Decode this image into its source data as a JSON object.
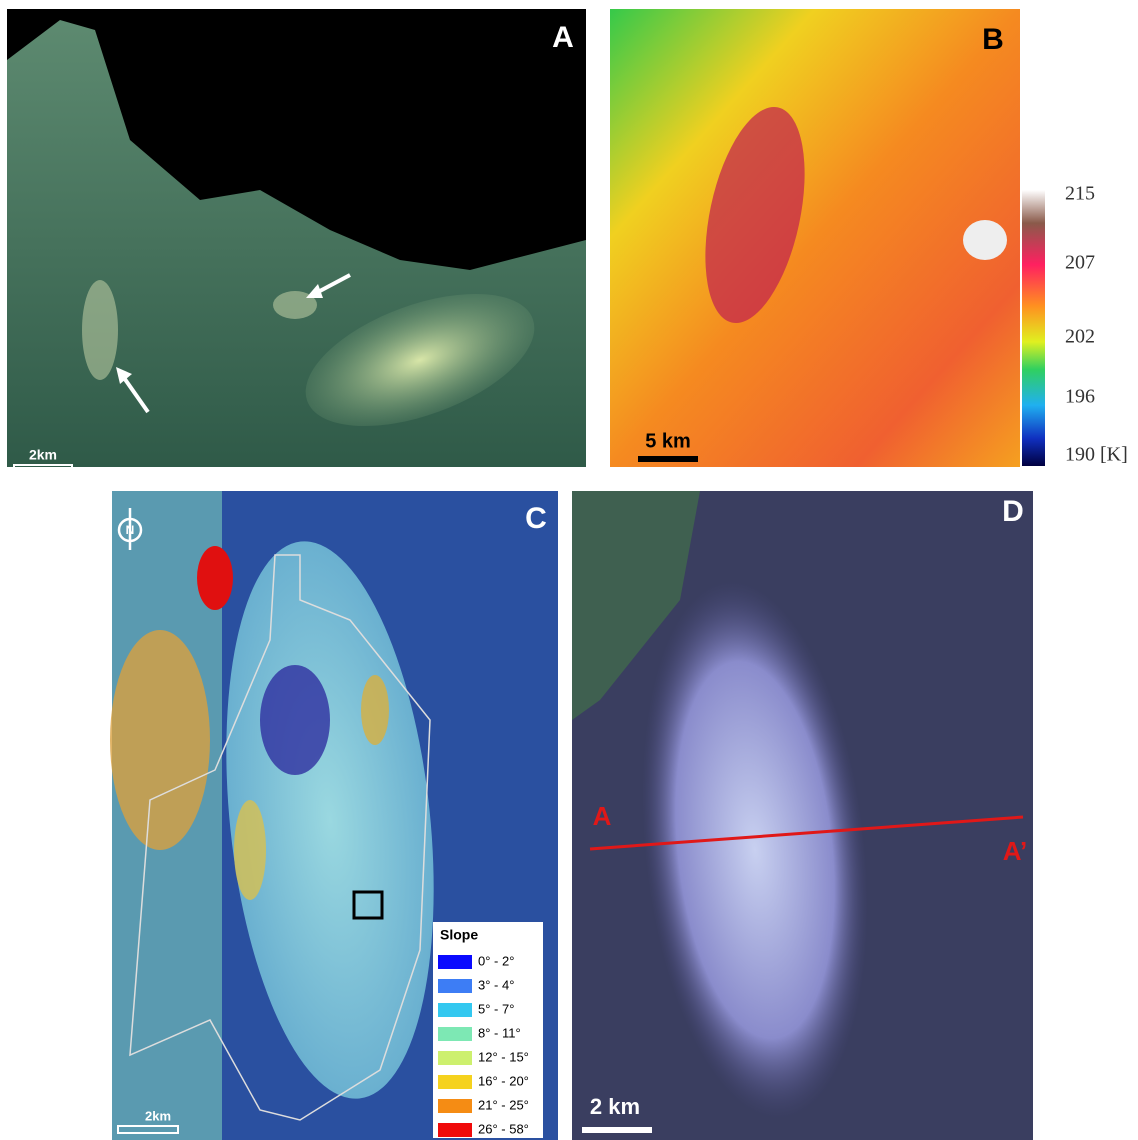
{
  "panels": [
    {
      "label": "A",
      "scale_bar": "2km"
    },
    {
      "label": "B",
      "scale_bar": "5 km",
      "colorbar": {
        "ticks": [
          "215",
          "207",
          "202",
          "196",
          "190 [K]"
        ]
      }
    },
    {
      "label": "C",
      "scale_bar": "2km",
      "north": "N",
      "legend": {
        "title": "Slope",
        "entries": [
          {
            "label": "0° - 2°",
            "color": "#0a0aff"
          },
          {
            "label": "3° - 4°",
            "color": "#3d7df5"
          },
          {
            "label": "5° - 7°",
            "color": "#33c8f0"
          },
          {
            "label": "8° - 11°",
            "color": "#7de8b4"
          },
          {
            "label": "12° - 15°",
            "color": "#cdf06e"
          },
          {
            "label": "16° - 20°",
            "color": "#f5d21e"
          },
          {
            "label": "21° - 25°",
            "color": "#f58c14"
          },
          {
            "label": "26° - 58°",
            "color": "#f00a0a"
          }
        ]
      }
    },
    {
      "label": "D",
      "scale_bar": "2 km",
      "profile": {
        "start": "A",
        "end": "A’"
      }
    }
  ]
}
